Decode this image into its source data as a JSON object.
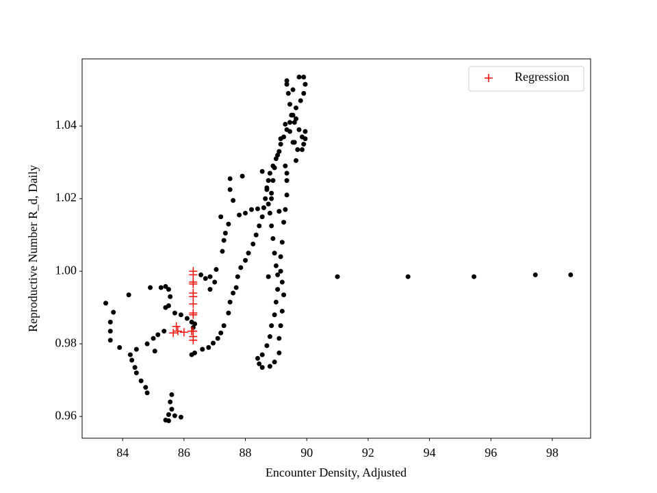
{
  "chart_data": {
    "type": "scatter",
    "xlabel": "Encounter Density, Adjusted",
    "ylabel": "Reproductive Number R_d, Daily",
    "xlim": [
      82.68,
      99.25
    ],
    "ylim": [
      0.954,
      1.0585
    ],
    "xticks": [
      84,
      86,
      88,
      90,
      92,
      94,
      96,
      98
    ],
    "yticks": [
      0.96,
      0.98,
      {
        "value": 1,
        "label": "1.00"
      },
      1.02,
      1.04
    ],
    "legend": "upper right",
    "series": [
      {
        "color": "#000000",
        "marker": "o",
        "x": [
          91.0,
          93.3,
          95.45,
          97.45,
          98.6,
          83.45,
          83.6,
          83.6,
          83.6,
          83.7,
          83.9,
          84.2,
          84.25,
          84.3,
          84.4,
          84.45,
          84.45,
          84.6,
          84.75,
          84.8,
          84.8,
          84.9,
          85.0,
          85.05,
          85.15,
          85.25,
          85.4,
          85.5,
          85.55,
          85.5,
          85.4,
          85.35,
          85.6,
          85.55,
          85.6,
          85.5,
          85.4,
          85.5,
          85.7,
          85.9,
          85.7,
          85.9,
          86.1,
          86.25,
          86.35,
          86.25,
          86.35,
          86.6,
          86.8,
          86.95,
          87.1,
          87.2,
          87.3,
          87.45,
          87.5,
          87.6,
          87.7,
          87.75,
          87.85,
          88.0,
          88.1,
          88.25,
          88.35,
          88.45,
          88.55,
          88.6,
          88.65,
          88.7,
          88.75,
          88.8,
          88.9,
          89.0,
          89.1,
          89.15,
          89.25,
          89.35,
          89.45,
          89.55,
          89.65,
          89.8,
          89.9,
          89.95,
          89.9,
          89.75,
          89.55,
          89.45,
          89.5,
          89.6,
          89.75,
          89.85,
          89.9,
          89.85,
          89.7,
          89.6,
          89.45,
          89.3,
          89.15,
          89.05,
          88.95,
          88.9,
          88.85,
          88.75,
          88.6,
          88.4,
          88.2,
          88.0,
          87.8,
          87.6,
          87.9,
          87.5,
          87.5,
          87.45,
          87.35,
          87.3,
          87.2,
          87.25,
          87.05,
          86.85,
          86.7,
          86.55,
          86.85,
          87.0,
          86.3,
          88.85,
          88.8,
          88.85,
          88.9,
          88.95,
          89.0,
          89.05,
          89.05,
          89.0,
          88.95,
          88.85,
          88.8,
          88.7,
          88.55,
          88.4,
          88.45,
          88.55,
          88.8,
          88.95,
          89.1,
          89.1,
          89.15,
          89.2,
          89.25,
          89.2,
          89.15,
          89.15,
          89.2,
          89.25,
          89.3,
          89.35,
          89.35,
          89.3,
          89.35,
          89.35,
          89.4,
          89.55,
          89.65,
          89.95,
          89.95,
          89.65,
          88.75,
          89.1,
          88.55,
          88.7,
          89.35
        ],
        "values": [
          0.9985,
          0.9985,
          0.9985,
          0.999,
          0.999,
          0.9912,
          0.986,
          0.9835,
          0.981,
          0.9887,
          0.979,
          0.9935,
          0.977,
          0.9755,
          0.9735,
          0.972,
          0.9785,
          0.9698,
          0.968,
          0.9665,
          0.98,
          0.9955,
          0.9815,
          0.978,
          0.9825,
          0.9955,
          0.9958,
          0.995,
          0.993,
          0.9905,
          0.99,
          0.9835,
          0.966,
          0.964,
          0.962,
          0.9605,
          0.959,
          0.9588,
          0.9602,
          0.9598,
          0.9885,
          0.988,
          0.987,
          0.986,
          0.9855,
          0.977,
          0.9775,
          0.9785,
          0.979,
          0.9802,
          0.9815,
          0.983,
          0.985,
          0.9885,
          0.9915,
          0.994,
          0.9955,
          0.9985,
          1.001,
          1.003,
          1.005,
          1.0075,
          1.01,
          1.0125,
          1.015,
          1.0175,
          1.02,
          1.0225,
          1.025,
          1.027,
          1.029,
          1.031,
          1.033,
          1.035,
          1.037,
          1.039,
          1.041,
          1.043,
          1.045,
          1.047,
          1.049,
          1.0515,
          1.0535,
          1.0535,
          1.05,
          1.046,
          1.043,
          1.041,
          1.039,
          1.037,
          1.035,
          1.0335,
          1.0335,
          1.0355,
          1.0385,
          1.0405,
          1.0365,
          1.032,
          1.0285,
          1.025,
          1.0215,
          1.0185,
          1.0175,
          1.0172,
          1.017,
          1.016,
          1.0155,
          1.0195,
          1.0262,
          1.0255,
          1.0225,
          1.013,
          1.0105,
          1.0085,
          1.015,
          1.0055,
          1.0005,
          0.9985,
          0.998,
          0.999,
          0.995,
          0.997,
          0.9845,
          1.02,
          1.016,
          1.0125,
          1.009,
          1.005,
          1.0015,
          0.999,
          0.995,
          0.9915,
          0.988,
          0.985,
          0.982,
          0.9795,
          0.977,
          0.976,
          0.9745,
          0.9735,
          0.9738,
          0.975,
          0.9775,
          0.9815,
          0.985,
          0.989,
          0.9935,
          0.997,
          1.0,
          1.004,
          1.008,
          1.0135,
          1.017,
          1.021,
          1.025,
          1.029,
          1.0515,
          1.0525,
          1.049,
          1.0355,
          1.042,
          1.0385,
          1.0365,
          1.0305,
          0.9985,
          1.0165,
          1.0275,
          1.023,
          1.027
        ]
      },
      {
        "name": "Regression",
        "color": "#ff0000",
        "marker": "+",
        "x": [
          86.3,
          86.3,
          86.3,
          86.3,
          86.3,
          86.3,
          86.3,
          86.3,
          86.3,
          86.3,
          86.3,
          86.3,
          85.75,
          85.8,
          85.65,
          86.0,
          86.25
        ],
        "values": [
          1.0,
          0.999,
          0.997,
          0.9965,
          0.994,
          0.993,
          0.991,
          0.9885,
          0.988,
          0.9835,
          0.982,
          0.981,
          0.9848,
          0.9835,
          0.983,
          0.9832,
          0.9835
        ]
      }
    ]
  }
}
